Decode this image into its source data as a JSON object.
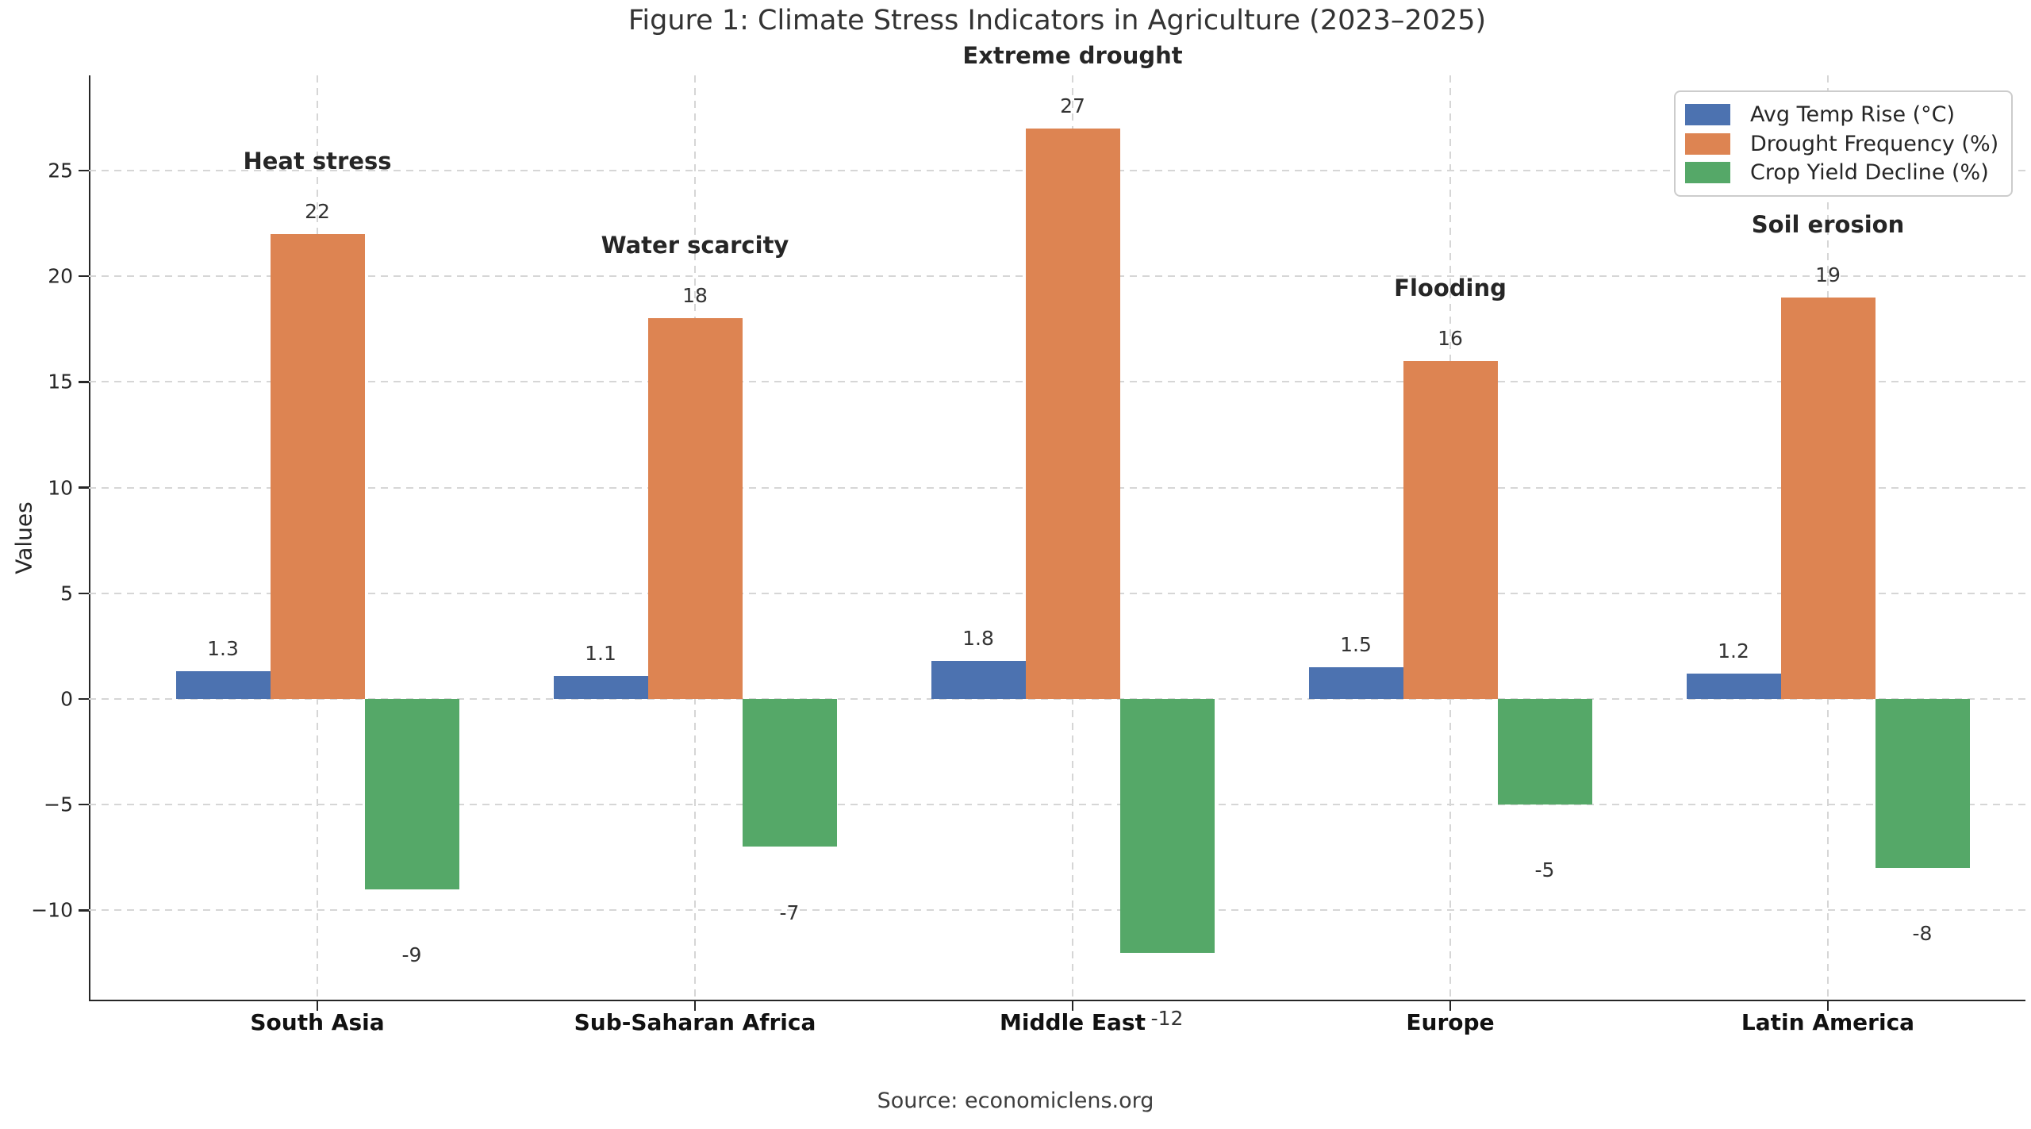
{
  "figure": {
    "source": "Source: economiclens.org"
  },
  "chart_data": {
    "type": "bar",
    "title": "Figure 1: Climate Stress Indicators in Agriculture (2023–2025)",
    "xlabel": "",
    "ylabel": "Values",
    "categories": [
      "South Asia",
      "Sub-Saharan Africa",
      "Middle East",
      "Europe",
      "Latin America"
    ],
    "series": [
      {
        "name": "Avg Temp Rise (°C)",
        "color": "#4C72B0",
        "values": [
          1.3,
          1.1,
          1.8,
          1.5,
          1.2
        ]
      },
      {
        "name": "Drought Frequency (%)",
        "color": "#DD8452",
        "values": [
          22,
          18,
          27,
          16,
          19
        ]
      },
      {
        "name": "Crop Yield Decline (%)",
        "color": "#55A868",
        "values": [
          -9,
          -7,
          -12,
          -5,
          -8
        ]
      }
    ],
    "annotations": [
      {
        "category": "South Asia",
        "label": "Heat stress"
      },
      {
        "category": "Sub-Saharan Africa",
        "label": "Water scarcity"
      },
      {
        "category": "Middle East",
        "label": "Extreme drought"
      },
      {
        "category": "Europe",
        "label": "Flooding"
      },
      {
        "category": "Latin America",
        "label": "Soil erosion"
      }
    ],
    "yticks": [
      -10,
      -5,
      0,
      5,
      10,
      15,
      20,
      25
    ],
    "ylim": [
      -14.3,
      29.5
    ],
    "grid": "dashed, horizontal and vertical",
    "legend_position": "upper right"
  }
}
